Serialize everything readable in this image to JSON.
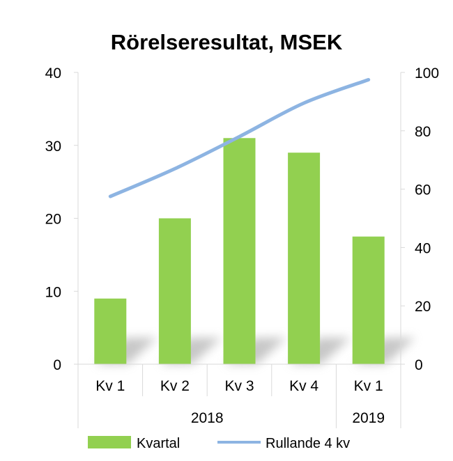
{
  "chart_data": {
    "type": "bar+line",
    "title": "Rörelseresultat, MSEK",
    "categories": [
      "Kv 1",
      "Kv 2",
      "Kv 3",
      "Kv 4",
      "Kv 1"
    ],
    "groups": [
      {
        "label": "2018",
        "span": [
          0,
          3
        ]
      },
      {
        "label": "2019",
        "span": [
          4,
          4
        ]
      }
    ],
    "series": [
      {
        "name": "Kvartal",
        "type": "bar",
        "axis": "left",
        "values": [
          9,
          20,
          31,
          29,
          17.5
        ],
        "color": "#92d050"
      },
      {
        "name": "Rullande 4 kv",
        "type": "line",
        "axis": "right",
        "values": [
          57.5,
          67,
          78,
          89.5,
          97.5
        ],
        "color": "#8db4e2"
      }
    ],
    "left_axis": {
      "min": 0,
      "max": 40,
      "ticks": [
        "0",
        "10",
        "20",
        "30",
        "40"
      ]
    },
    "right_axis": {
      "min": 0,
      "max": 100,
      "ticks": [
        "0",
        "20",
        "40",
        "60",
        "80",
        "100"
      ]
    },
    "grid": false,
    "legend_position": "bottom"
  }
}
